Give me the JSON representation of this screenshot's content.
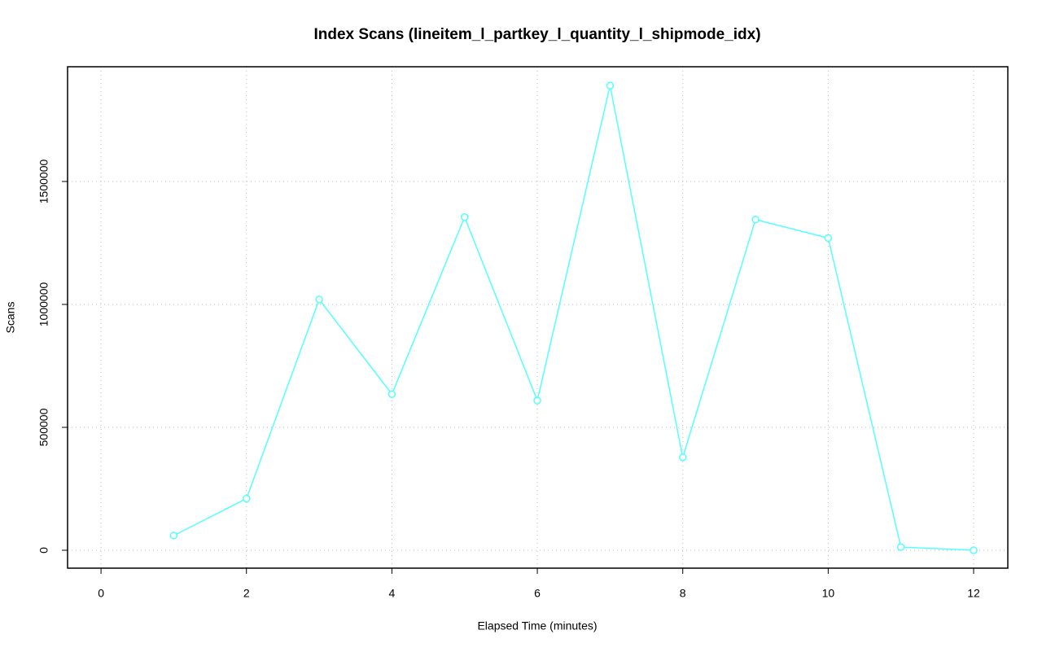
{
  "chart_data": {
    "type": "line",
    "title": "Index Scans (lineitem_l_partkey_l_quantity_l_shipmode_idx)",
    "x_label": "Elapsed Time (minutes)",
    "y_label": "Scans",
    "x": [
      1,
      2,
      3,
      4,
      5,
      6,
      7,
      8,
      9,
      10,
      11,
      12
    ],
    "series": [
      {
        "name": "Scans",
        "color": "#55ffff",
        "values": [
          60000,
          210000,
          1020000,
          635000,
          1355000,
          609000,
          1890000,
          378000,
          1345000,
          1270000,
          13000,
          0
        ]
      }
    ],
    "xlim": [
      -0.46,
      12.47
    ],
    "ylim": [
      -72800,
      1966700
    ],
    "xticks": [
      0,
      2,
      4,
      6,
      8,
      10,
      12
    ],
    "yticks": [
      0,
      500000,
      1000000,
      1500000
    ],
    "grid": true
  }
}
